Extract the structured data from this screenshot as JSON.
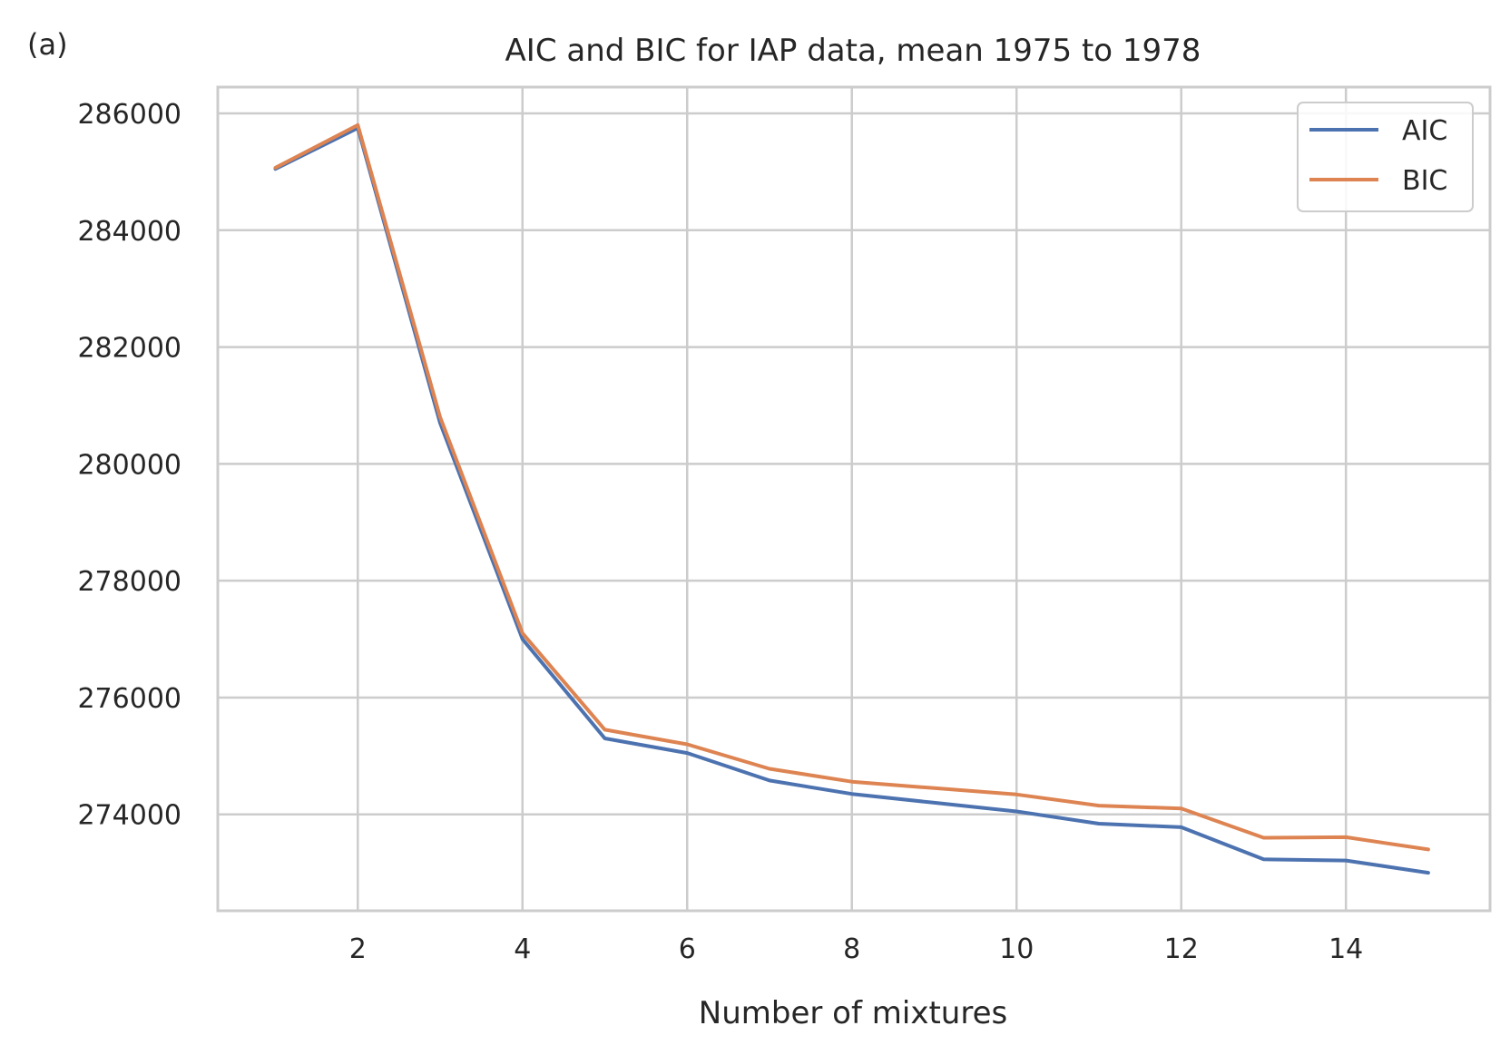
{
  "panel_label": "(a)",
  "chart_data": {
    "type": "line",
    "title": "AIC and BIC for IAP data, mean 1975 to 1978",
    "xlabel": "Number of mixtures",
    "ylabel": "",
    "x": [
      1,
      2,
      3,
      4,
      5,
      6,
      7,
      8,
      9,
      10,
      11,
      12,
      13,
      14,
      15
    ],
    "xticks": [
      2,
      4,
      6,
      8,
      10,
      12,
      14
    ],
    "yticks": [
      274000,
      276000,
      278000,
      280000,
      282000,
      284000,
      286000
    ],
    "xlim": [
      0.3,
      15.75
    ],
    "ylim": [
      272350,
      286450
    ],
    "grid": true,
    "legend_position": "top-right",
    "series": [
      {
        "name": "AIC",
        "color": "#4c72b0",
        "values": [
          285050,
          285750,
          280700,
          277000,
          275300,
          275050,
          274580,
          274350,
          274200,
          274050,
          273840,
          273780,
          273230,
          273210,
          273000
        ]
      },
      {
        "name": "BIC",
        "color": "#dd8452",
        "values": [
          285070,
          285800,
          280800,
          277100,
          275450,
          275200,
          274780,
          274560,
          274450,
          274340,
          274150,
          274100,
          273600,
          273610,
          273400
        ]
      }
    ]
  }
}
